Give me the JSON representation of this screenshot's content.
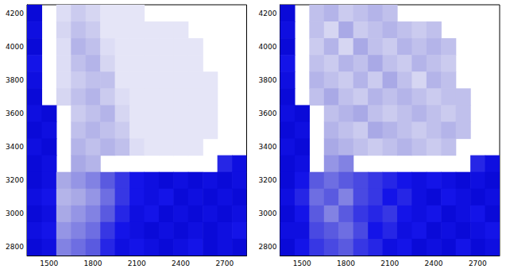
{
  "chart_data": [
    {
      "type": "heatmap",
      "xlim": [
        1350,
        2850
      ],
      "xticks": [
        1500,
        1800,
        2100,
        2400,
        2700
      ],
      "ylim": [
        2750,
        4250
      ],
      "yticks": [
        2800,
        3000,
        3200,
        3400,
        3600,
        3800,
        4000,
        4200
      ],
      "zlim": [
        0,
        1
      ],
      "x": [
        1400,
        1500,
        1600,
        1700,
        1800,
        1900,
        2000,
        2100,
        2200,
        2300,
        2400,
        2500,
        2600,
        2700,
        2800
      ],
      "y": [
        4200,
        4100,
        4000,
        3900,
        3800,
        3700,
        3600,
        3500,
        3400,
        3300,
        3200,
        3100,
        3000,
        2900,
        2800
      ],
      "cells": [
        [
          0.9,
          null,
          0.15,
          0.25,
          0.2,
          0.1,
          0.1,
          0.1,
          null,
          null,
          null,
          null,
          null,
          null,
          null
        ],
        [
          0.85,
          null,
          0.2,
          0.3,
          0.25,
          0.1,
          0.1,
          0.1,
          0.1,
          0.1,
          0.1,
          null,
          null,
          null,
          null
        ],
        [
          0.9,
          null,
          0.15,
          0.35,
          0.3,
          0.15,
          0.1,
          0.1,
          0.1,
          0.1,
          0.1,
          0.1,
          null,
          null,
          null
        ],
        [
          0.8,
          null,
          0.15,
          0.3,
          0.35,
          0.2,
          0.1,
          0.1,
          0.1,
          0.1,
          0.1,
          0.1,
          null,
          null,
          null
        ],
        [
          0.85,
          null,
          0.15,
          0.25,
          0.3,
          0.3,
          0.1,
          0.1,
          0.1,
          0.1,
          0.1,
          0.1,
          0.1,
          null,
          null
        ],
        [
          0.9,
          null,
          0.2,
          0.3,
          0.35,
          0.25,
          0.15,
          0.1,
          0.1,
          0.1,
          0.1,
          0.1,
          0.1,
          null,
          null
        ],
        [
          0.85,
          0.9,
          null,
          0.25,
          0.3,
          0.35,
          0.2,
          0.1,
          0.1,
          0.1,
          0.1,
          0.1,
          0.1,
          null,
          null
        ],
        [
          0.9,
          0.85,
          null,
          0.3,
          0.35,
          0.3,
          0.25,
          0.1,
          0.1,
          0.1,
          0.1,
          0.1,
          0.1,
          null,
          null
        ],
        [
          0.85,
          0.9,
          null,
          0.35,
          0.3,
          0.35,
          0.3,
          0.15,
          0.1,
          0.1,
          0.1,
          0.1,
          null,
          null,
          null
        ],
        [
          0.9,
          0.85,
          null,
          0.4,
          0.35,
          null,
          null,
          null,
          null,
          null,
          null,
          null,
          null,
          0.75,
          0.85
        ],
        [
          0.9,
          0.85,
          0.4,
          0.45,
          0.5,
          0.6,
          0.7,
          0.8,
          0.85,
          0.9,
          0.85,
          0.9,
          0.85,
          0.9,
          0.85
        ],
        [
          0.85,
          0.8,
          0.35,
          0.4,
          0.45,
          0.55,
          0.7,
          0.8,
          0.85,
          0.8,
          0.9,
          0.85,
          0.9,
          0.85,
          0.9
        ],
        [
          0.9,
          0.85,
          0.4,
          0.45,
          0.5,
          0.6,
          0.75,
          0.85,
          0.8,
          0.9,
          0.85,
          0.9,
          0.85,
          0.9,
          0.85
        ],
        [
          0.85,
          0.8,
          0.45,
          0.5,
          0.55,
          0.7,
          0.8,
          0.85,
          0.9,
          0.85,
          0.9,
          0.85,
          0.9,
          0.85,
          0.8
        ],
        [
          0.9,
          0.85,
          0.5,
          0.55,
          0.6,
          0.75,
          0.85,
          0.8,
          0.85,
          0.9,
          0.85,
          0.8,
          0.9,
          0.85,
          0.9
        ]
      ]
    },
    {
      "type": "heatmap",
      "xlim": [
        1350,
        2850
      ],
      "xticks": [
        1500,
        1800,
        2100,
        2400,
        2700
      ],
      "ylim": [
        2750,
        4250
      ],
      "yticks": [
        2800,
        3000,
        3200,
        3400,
        3600,
        3800,
        4000,
        4200
      ],
      "zlim": [
        0,
        1
      ],
      "x": [
        1400,
        1500,
        1600,
        1700,
        1800,
        1900,
        2000,
        2100,
        2200,
        2300,
        2400,
        2500,
        2600,
        2700,
        2800
      ],
      "y": [
        4200,
        4100,
        4000,
        3900,
        3800,
        3700,
        3600,
        3500,
        3400,
        3300,
        3200,
        3100,
        3000,
        2900,
        2800
      ],
      "cells": [
        [
          0.9,
          null,
          0.3,
          0.35,
          0.25,
          0.3,
          0.35,
          0.3,
          null,
          null,
          null,
          null,
          null,
          null,
          null
        ],
        [
          0.85,
          null,
          0.3,
          0.2,
          0.4,
          0.25,
          0.3,
          0.35,
          0.3,
          0.25,
          0.3,
          null,
          null,
          null,
          null
        ],
        [
          0.9,
          null,
          0.25,
          0.35,
          0.2,
          0.4,
          0.3,
          0.25,
          0.35,
          0.3,
          0.35,
          0.3,
          null,
          null,
          null
        ],
        [
          0.8,
          null,
          0.3,
          0.25,
          0.35,
          0.3,
          0.4,
          0.3,
          0.25,
          0.35,
          0.3,
          0.25,
          null,
          null,
          null
        ],
        [
          0.85,
          null,
          0.35,
          0.3,
          0.25,
          0.35,
          0.25,
          0.4,
          0.3,
          0.2,
          0.35,
          0.3,
          null,
          null,
          null
        ],
        [
          0.9,
          null,
          0.3,
          0.4,
          0.3,
          0.25,
          0.35,
          0.3,
          0.35,
          0.3,
          0.25,
          0.3,
          0.3,
          null,
          null
        ],
        [
          0.85,
          0.9,
          null,
          0.3,
          0.35,
          0.4,
          0.3,
          0.25,
          0.3,
          0.35,
          0.3,
          0.25,
          0.3,
          null,
          null
        ],
        [
          0.9,
          0.85,
          null,
          0.35,
          0.3,
          0.25,
          0.4,
          0.35,
          0.3,
          0.25,
          0.3,
          0.35,
          0.3,
          null,
          null
        ],
        [
          0.85,
          0.9,
          null,
          0.4,
          0.35,
          0.3,
          0.25,
          0.3,
          0.35,
          0.3,
          0.25,
          0.3,
          null,
          null,
          null
        ],
        [
          0.9,
          0.85,
          null,
          0.45,
          0.5,
          null,
          null,
          null,
          null,
          null,
          null,
          null,
          null,
          0.75,
          0.85
        ],
        [
          0.9,
          0.8,
          0.6,
          0.55,
          0.6,
          0.65,
          0.7,
          0.75,
          0.8,
          0.85,
          0.8,
          0.85,
          0.9,
          0.85,
          0.9
        ],
        [
          0.85,
          0.75,
          0.55,
          0.6,
          0.5,
          0.65,
          0.7,
          0.8,
          0.75,
          0.85,
          0.9,
          0.8,
          0.85,
          0.9,
          0.85
        ],
        [
          0.9,
          0.8,
          0.6,
          0.5,
          0.6,
          0.7,
          0.75,
          0.7,
          0.8,
          0.85,
          0.8,
          0.9,
          0.85,
          0.8,
          0.9
        ],
        [
          0.85,
          0.85,
          0.65,
          0.6,
          0.55,
          0.65,
          0.8,
          0.75,
          0.85,
          0.8,
          0.9,
          0.85,
          0.9,
          0.85,
          0.8
        ],
        [
          0.9,
          0.8,
          0.7,
          0.65,
          0.6,
          0.7,
          0.75,
          0.85,
          0.8,
          0.9,
          0.85,
          0.9,
          0.8,
          0.9,
          0.85
        ]
      ]
    }
  ]
}
